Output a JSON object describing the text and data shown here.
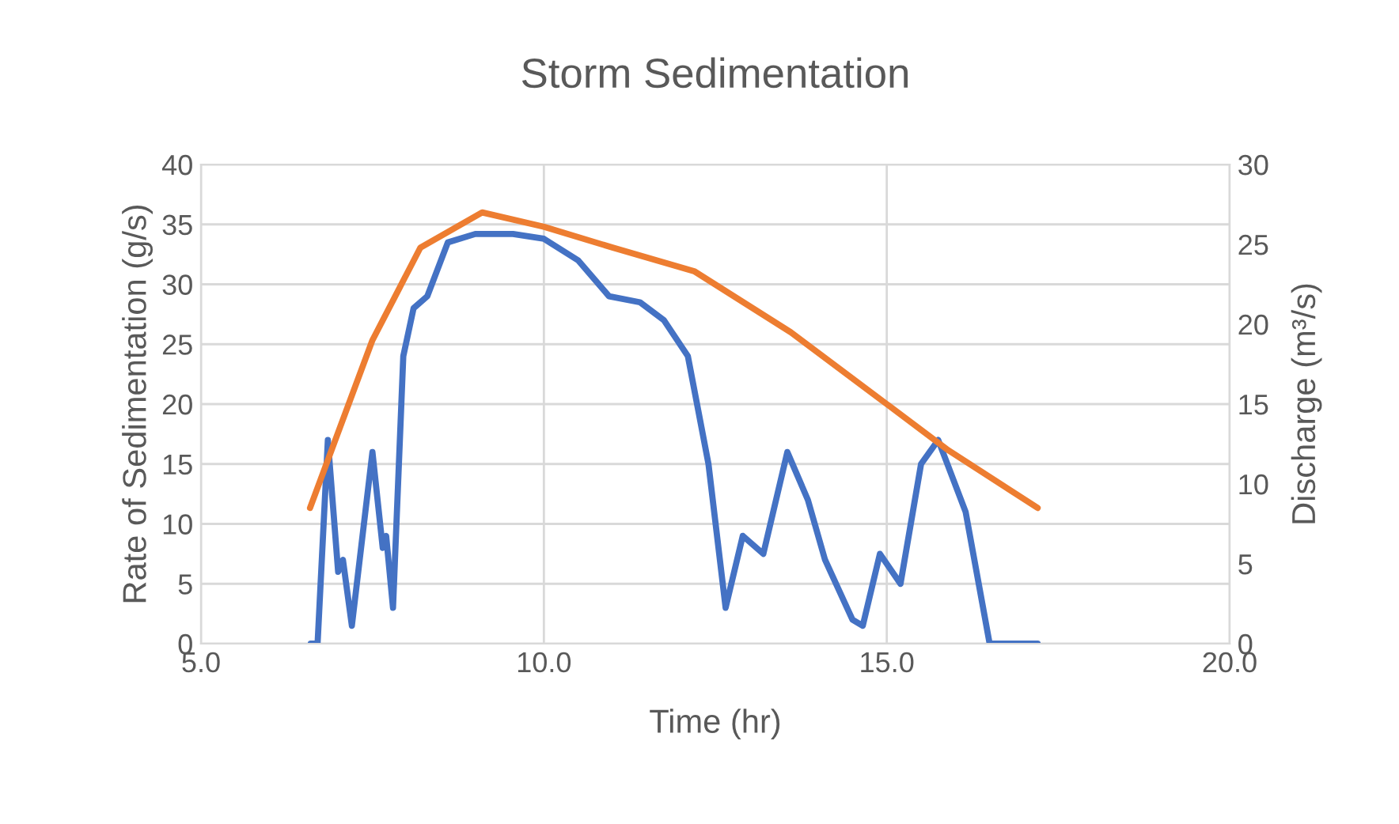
{
  "chart_data": {
    "type": "line",
    "title": "Storm Sedimentation",
    "xlabel": "Time (hr)",
    "ylabel": "Rate of Sedimentation (g/s)",
    "y2label": "Discharge (m³/s)",
    "xlim": [
      5,
      20
    ],
    "xticks": [
      {
        "value": 5,
        "label": "5.0"
      },
      {
        "value": 10,
        "label": "10.0"
      },
      {
        "value": 15,
        "label": "15.0"
      },
      {
        "value": 20,
        "label": "20.0"
      }
    ],
    "ylim": [
      0,
      40
    ],
    "yticks": [
      0,
      5,
      10,
      15,
      20,
      25,
      30,
      35,
      40
    ],
    "y2lim": [
      0,
      30
    ],
    "y2ticks": [
      0,
      5,
      10,
      15,
      20,
      25,
      30
    ],
    "grid": true,
    "marker": "none",
    "line_style": "solid",
    "series": [
      {
        "color": "#4472c4",
        "x": [
          6.6,
          6.7,
          6.85,
          7.0,
          7.07,
          7.2,
          7.5,
          7.65,
          7.7,
          7.8,
          7.95,
          8.1,
          8.3,
          8.6,
          9.0,
          9.55,
          10.0,
          10.5,
          10.95,
          11.4,
          11.75,
          12.1,
          12.4,
          12.65,
          12.9,
          13.2,
          13.55,
          13.85,
          14.1,
          14.5,
          14.65,
          14.9,
          15.2,
          15.5,
          15.75,
          16.15,
          16.5,
          17.2
        ],
        "values": [
          0,
          0,
          17,
          6,
          7,
          1.5,
          16,
          8,
          9,
          3,
          24,
          28,
          29,
          33.5,
          34.2,
          34.2,
          33.8,
          32,
          29,
          28.5,
          27,
          24,
          15,
          3,
          9,
          7.5,
          16,
          12,
          7,
          2,
          1.5,
          7.5,
          5,
          15,
          17,
          11,
          0,
          0
        ]
      },
      {
        "color": "#ed7d31",
        "axis": "y2",
        "x": [
          6.59,
          7.5,
          8.2,
          9.1,
          10.0,
          11.0,
          12.2,
          13.6,
          15.0,
          15.9,
          17.2
        ],
        "values": [
          8.5,
          19,
          24.8,
          27,
          26.1,
          24.8,
          23.3,
          19.5,
          15,
          12.1,
          8.5
        ]
      }
    ]
  }
}
